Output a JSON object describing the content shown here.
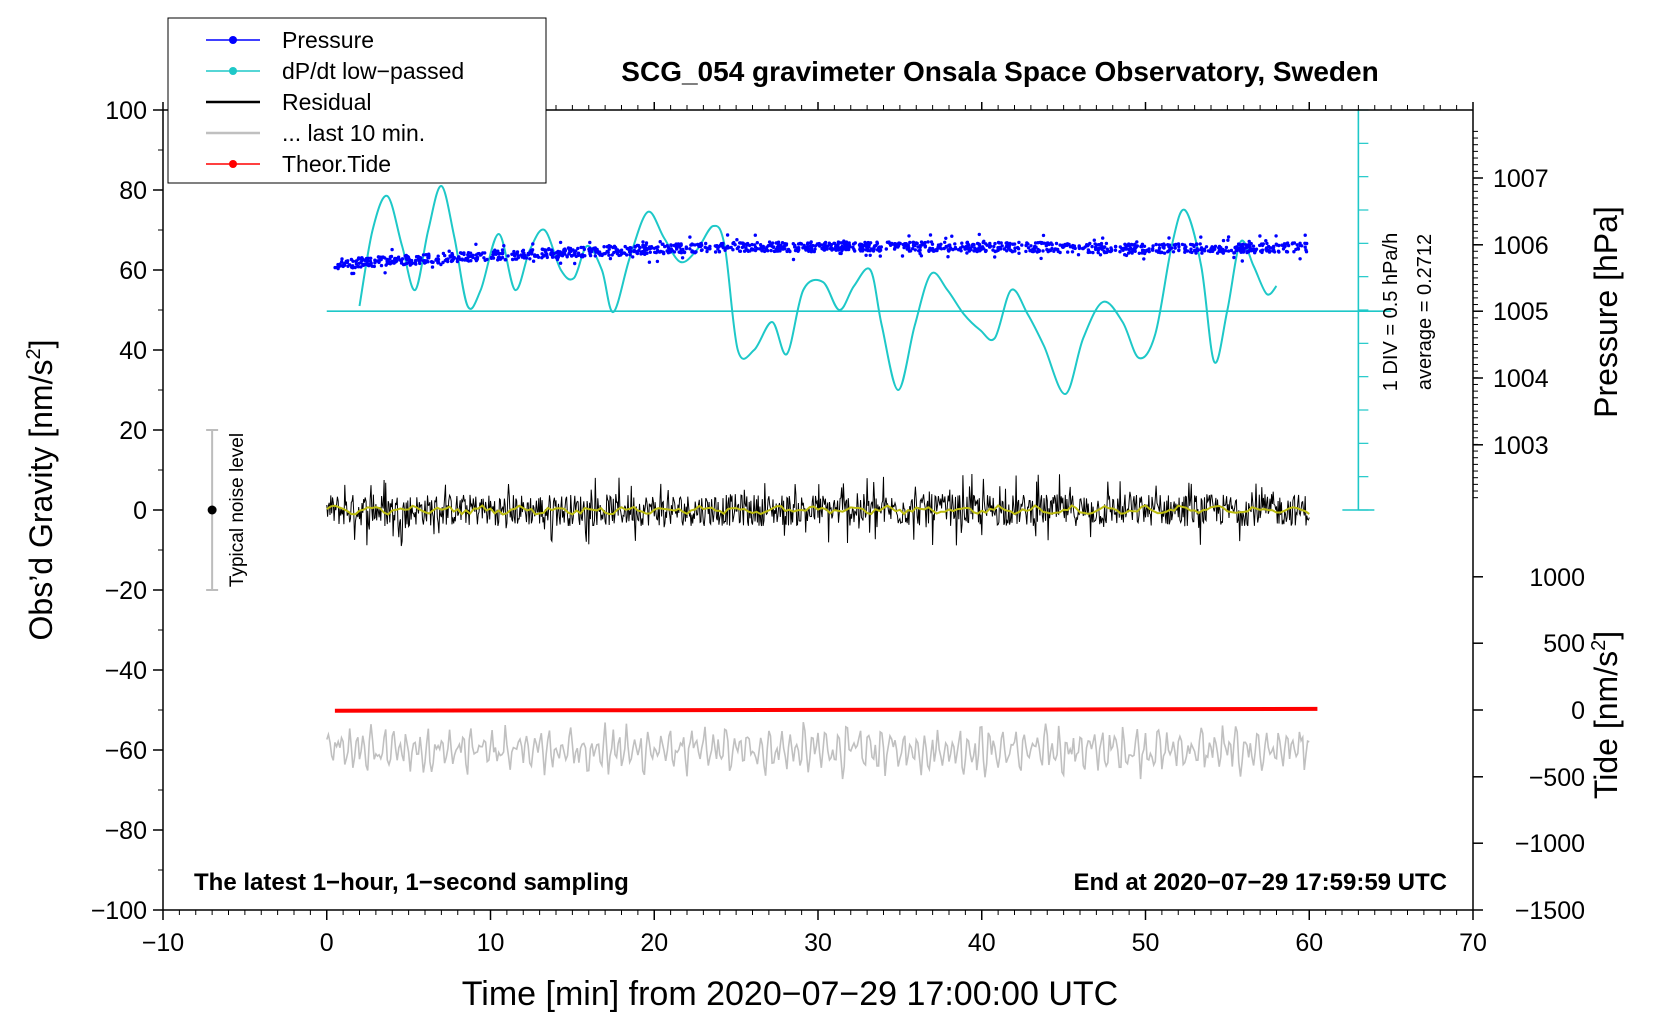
{
  "chart_data": {
    "type": "line",
    "title": "SCG_054 gravimeter Onsala Space Observatory, Sweden",
    "xlabel": "Time [min] from 2020−07−29 17:00:00 UTC",
    "ylabel": "Obs’d Gravity [nm/s²]",
    "ylabel_base": "Obs’d Gravity [nm/s",
    "ylabel_sup": "2",
    "ylabel_end": "]",
    "y2label": "Pressure [hPa]",
    "y3label_base": "Tide [nm/s",
    "y3label_sup": "2",
    "y3label_end": "]",
    "xlim": [
      -10,
      70
    ],
    "ylim": [
      -100,
      100
    ],
    "x_ticks": [
      "−10",
      "0",
      "10",
      "20",
      "30",
      "40",
      "50",
      "60",
      "70"
    ],
    "x_tick_values": [
      -10,
      0,
      10,
      20,
      30,
      40,
      50,
      60,
      70
    ],
    "y_ticks": [
      "100",
      "80",
      "60",
      "40",
      "20",
      "0",
      "−20",
      "−40",
      "−60",
      "−80",
      "−100"
    ],
    "y_tick_values": [
      100,
      80,
      60,
      40,
      20,
      0,
      -20,
      -40,
      -60,
      -80,
      -100
    ],
    "pressure_axis": {
      "ticks": [
        "1007",
        "1006",
        "1005",
        "1004",
        "1003"
      ],
      "values": [
        1007,
        1006,
        1005,
        1004,
        1003
      ],
      "maps_to_gravity": [
        83,
        66.3,
        49.7,
        33,
        16.3
      ]
    },
    "tide_axis": {
      "ticks": [
        "1000",
        "500",
        "0",
        "−500",
        "−1000",
        "−1500"
      ],
      "values": [
        1000,
        500,
        0,
        -500,
        -1000,
        -1500
      ],
      "maps_to_gravity": [
        -16.7,
        -33.3,
        -50,
        -66.7,
        -83.3,
        -100
      ]
    },
    "legend": {
      "placement": "top-left",
      "entries": [
        {
          "label": "Pressure",
          "color": "#0000ff",
          "marker": "dot"
        },
        {
          "label": "dP/dt low−passed",
          "color": "#1ec8c8",
          "marker": "dot"
        },
        {
          "label": "Residual",
          "color": "#000000",
          "marker": "none"
        },
        {
          "label": "... last 10 min.",
          "color": "#c0c0c0",
          "marker": "none"
        },
        {
          "label": "Theor.Tide",
          "color": "#ff0000",
          "marker": "dot"
        }
      ]
    },
    "series": [
      {
        "name": "Pressure",
        "color": "#0000ff",
        "unit": "gravity-axis",
        "x": [
          0.5,
          5,
          10,
          15,
          20,
          25,
          30,
          35,
          40,
          45,
          50,
          55,
          60
        ],
        "values": [
          61.5,
          62.5,
          63.6,
          64.4,
          65.2,
          65.8,
          65.8,
          65.9,
          65.8,
          65.6,
          65.3,
          65.4,
          65.6
        ]
      },
      {
        "name": "dP/dt low−passed",
        "color": "#1ec8c8",
        "unit": "gravity-axis",
        "x": [
          2,
          2.8,
          3.7,
          4.6,
          5.4,
          6.2,
          7,
          7.8,
          8.6,
          9.4,
          10.5,
          11.5,
          12.4,
          13.3,
          14.3,
          15.1,
          15.9,
          16.8,
          17.5,
          18.5,
          19.6,
          20.6,
          21.6,
          22.6,
          23.6,
          24.3,
          25.1,
          26.1,
          27.2,
          28.1,
          29.1,
          30.3,
          31.3,
          32.2,
          33.2,
          33.9,
          34.9,
          35.9,
          36.9,
          37.9,
          38.9,
          39.9,
          40.8,
          41.8,
          42.8,
          43.8,
          45.1,
          46.2,
          47.4,
          48.6,
          49.6,
          50.6,
          51.6,
          52.4,
          53.4,
          54.2,
          55.0,
          55.8,
          56.6,
          57.4,
          58.0
        ],
        "values": [
          51,
          70,
          78.5,
          66,
          55,
          70,
          81,
          68,
          51,
          55,
          69,
          55,
          65,
          70,
          60,
          58,
          66,
          60,
          49.5,
          63,
          74.5,
          68,
          62,
          65,
          71,
          66,
          40,
          40,
          47,
          39,
          55,
          57,
          50,
          56,
          60,
          46,
          30,
          46,
          59,
          55,
          49,
          45,
          43,
          55,
          49,
          41,
          29,
          43,
          52,
          47,
          38,
          44,
          66,
          75,
          61,
          37,
          50,
          67,
          61,
          54,
          56
        ]
      },
      {
        "name": "Residual",
        "color": "#000000",
        "unit": "gravity-axis",
        "x": [
          0,
          60
        ],
        "values": [
          0,
          0
        ],
        "range": [
          -9,
          9
        ]
      },
      {
        "name": "... last 10 min.",
        "color": "#c0c0c0",
        "unit": "gravity-axis",
        "x": [
          0,
          60
        ],
        "values": [
          -60,
          -60
        ],
        "range": [
          -69,
          -53
        ]
      },
      {
        "name": "Theor.Tide",
        "color": "#ff0000",
        "unit": "nm/s2 (tide axis)",
        "x": [
          0.5,
          15,
          30,
          45,
          60.5
        ],
        "values": [
          -5,
          -2,
          1,
          4,
          8
        ]
      }
    ],
    "average_line": {
      "value": 49.7,
      "color": "#1ec8c8"
    },
    "scale_bar": {
      "label_div": "1 DIV = 0.5 hPa/h",
      "label_avg": "average = 0.2712",
      "x": 63,
      "y_top": 100,
      "y_bottom": 0,
      "color": "#1ec8c8"
    },
    "noise_bar": {
      "label": "Typical noise level",
      "x": -7,
      "y_top": 20,
      "y_bottom": -20,
      "center": 0
    },
    "annotations": {
      "bottom_left": "The latest 1−hour, 1−second sampling",
      "bottom_right": "End at 2020−07−29 17:59:59 UTC"
    },
    "grid": false
  }
}
